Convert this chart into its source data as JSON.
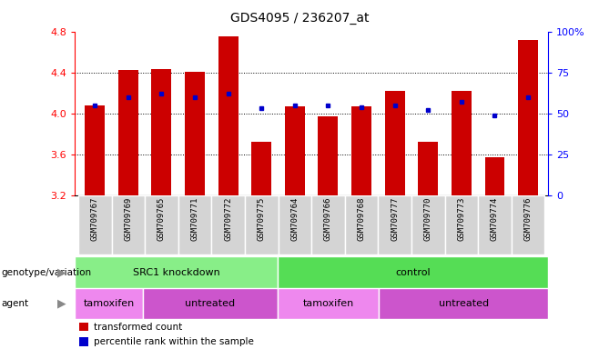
{
  "title": "GDS4095 / 236207_at",
  "samples": [
    "GSM709767",
    "GSM709769",
    "GSM709765",
    "GSM709771",
    "GSM709772",
    "GSM709775",
    "GSM709764",
    "GSM709766",
    "GSM709768",
    "GSM709777",
    "GSM709770",
    "GSM709773",
    "GSM709774",
    "GSM709776"
  ],
  "transformed_count": [
    4.08,
    4.42,
    4.43,
    4.41,
    4.75,
    3.72,
    4.07,
    3.97,
    4.07,
    4.22,
    3.72,
    4.22,
    3.57,
    4.72
  ],
  "percentile_rank": [
    55,
    60,
    62,
    60,
    62,
    53,
    55,
    55,
    54,
    55,
    52,
    57,
    49,
    60
  ],
  "bar_baseline": 3.2,
  "ylim_left": [
    3.2,
    4.8
  ],
  "ylim_right": [
    0,
    100
  ],
  "yticks_left": [
    3.2,
    3.6,
    4.0,
    4.4,
    4.8
  ],
  "yticks_right": [
    0,
    25,
    50,
    75,
    100
  ],
  "grid_values": [
    3.6,
    4.0,
    4.4
  ],
  "bar_color": "#cc0000",
  "dot_color": "#0000cc",
  "background_color": "#ffffff",
  "genotype_groups": [
    {
      "label": "SRC1 knockdown",
      "start": 0,
      "end": 6,
      "color": "#88ee88"
    },
    {
      "label": "control",
      "start": 6,
      "end": 14,
      "color": "#55dd55"
    }
  ],
  "agent_groups": [
    {
      "label": "tamoxifen",
      "start": 0,
      "end": 2,
      "color": "#ee88ee"
    },
    {
      "label": "untreated",
      "start": 2,
      "end": 6,
      "color": "#cc55cc"
    },
    {
      "label": "tamoxifen",
      "start": 6,
      "end": 9,
      "color": "#ee88ee"
    },
    {
      "label": "untreated",
      "start": 9,
      "end": 14,
      "color": "#cc55cc"
    }
  ],
  "legend_items": [
    {
      "label": "transformed count",
      "color": "#cc0000"
    },
    {
      "label": "percentile rank within the sample",
      "color": "#0000cc"
    }
  ],
  "row_label_genotype": "genotype/variation",
  "row_label_agent": "agent",
  "sample_bg_color": "#d4d4d4",
  "sample_border_color": "#ffffff"
}
